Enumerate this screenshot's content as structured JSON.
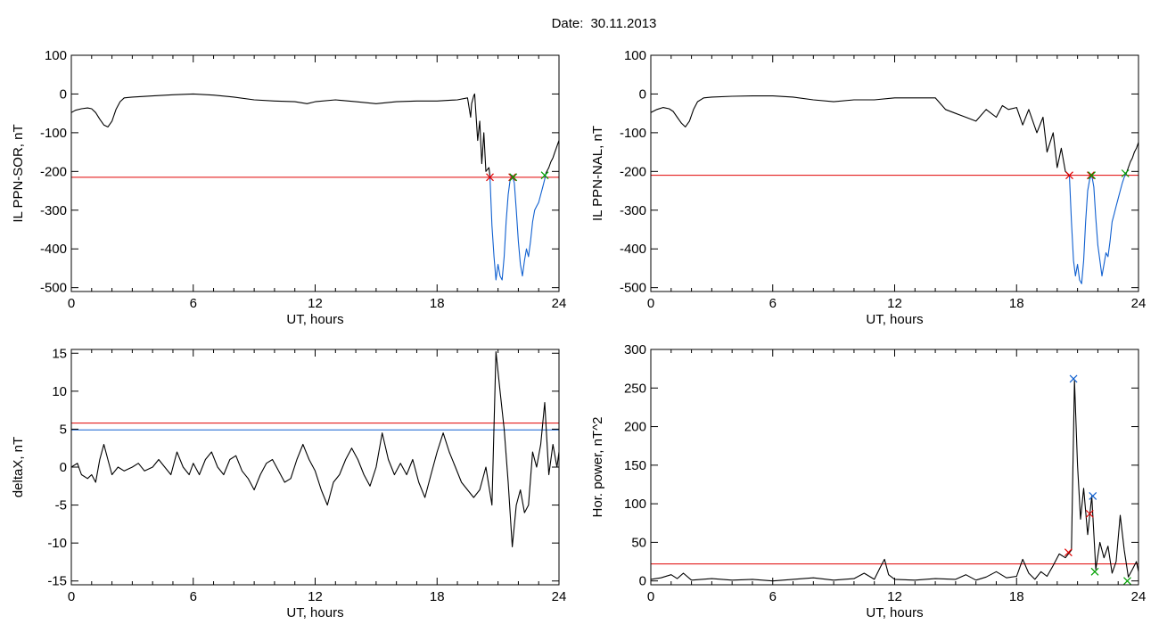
{
  "header": {
    "date_label": "Date:",
    "date_value": "30.11.2013"
  },
  "chart_data": [
    {
      "type": "line",
      "ylabel": "IL PPN-SOR, nT",
      "xlabel": "UT, hours",
      "xlim": [
        0,
        24
      ],
      "ylim": [
        -510,
        100
      ],
      "xticks": [
        0,
        6,
        12,
        18,
        24
      ],
      "yticks": [
        100,
        0,
        -100,
        -200,
        -300,
        -400,
        -500
      ],
      "threshold": {
        "value": -215,
        "color": "#e00000"
      },
      "series": [
        {
          "color": "#000000",
          "x": [
            0,
            0.2,
            0.5,
            0.8,
            1.0,
            1.2,
            1.4,
            1.6,
            1.8,
            2.0,
            2.2,
            2.4,
            2.6,
            3,
            4,
            5,
            6,
            7,
            8,
            9,
            10,
            11,
            11.6,
            12,
            13,
            14,
            15,
            16,
            17,
            18,
            19,
            19.5,
            19.65,
            19.7,
            19.8,
            19.85,
            20,
            20.1,
            20.2,
            20.3,
            20.4,
            20.55,
            20.6
          ],
          "y": [
            -48,
            -42,
            -38,
            -36,
            -38,
            -48,
            -65,
            -80,
            -85,
            -70,
            -40,
            -20,
            -10,
            -8,
            -5,
            -2,
            0,
            -3,
            -8,
            -15,
            -18,
            -20,
            -25,
            -20,
            -15,
            -20,
            -25,
            -20,
            -18,
            -18,
            -15,
            -10,
            -60,
            -25,
            -5,
            0,
            -120,
            -70,
            -180,
            -100,
            -200,
            -190,
            -210
          ]
        },
        {
          "color": "#1060d0",
          "x": [
            20.6,
            20.7,
            20.8,
            20.9,
            21.0,
            21.1,
            21.2,
            21.3,
            21.4,
            21.5,
            21.6,
            21.7,
            21.8,
            21.9,
            22.0,
            22.1,
            22.2,
            22.3,
            22.4,
            22.5,
            22.6,
            22.7,
            22.8,
            22.9,
            23.0,
            23.1,
            23.2,
            23.3,
            23.35
          ],
          "y": [
            -210,
            -340,
            -420,
            -480,
            -440,
            -470,
            -480,
            -420,
            -330,
            -260,
            -220,
            -210,
            -230,
            -300,
            -380,
            -440,
            -470,
            -430,
            -400,
            -420,
            -380,
            -330,
            -300,
            -290,
            -280,
            -260,
            -240,
            -220,
            -205
          ]
        },
        {
          "color": "#000000",
          "x": [
            23.35,
            23.5,
            23.6,
            23.7,
            23.8,
            23.9,
            24
          ],
          "y": [
            -205,
            -190,
            -175,
            -165,
            -150,
            -135,
            -120
          ]
        }
      ],
      "markers": [
        {
          "x": 20.6,
          "y": -215,
          "color": "#e00000"
        },
        {
          "x": 21.7,
          "y": -215,
          "color": "#e00000"
        },
        {
          "x": 21.75,
          "y": -215,
          "color": "#00a000"
        },
        {
          "x": 23.3,
          "y": -210,
          "color": "#00a000"
        }
      ]
    },
    {
      "type": "line",
      "ylabel": "IL PPN-NAL, nT",
      "xlabel": "UT, hours",
      "xlim": [
        0,
        24
      ],
      "ylim": [
        -510,
        100
      ],
      "xticks": [
        0,
        6,
        12,
        18,
        24
      ],
      "yticks": [
        100,
        0,
        -100,
        -200,
        -300,
        -400,
        -500
      ],
      "threshold": {
        "value": -210,
        "color": "#e00000"
      },
      "series": [
        {
          "color": "#000000",
          "x": [
            0,
            0.3,
            0.6,
            0.9,
            1.1,
            1.3,
            1.5,
            1.7,
            1.9,
            2.1,
            2.3,
            2.6,
            3,
            4,
            5,
            6,
            7,
            8,
            9,
            10,
            11,
            12,
            13,
            14,
            14.5,
            15,
            15.5,
            16,
            16.5,
            17,
            17.3,
            17.6,
            18,
            18.3,
            18.6,
            19,
            19.3,
            19.5,
            19.8,
            20,
            20.2,
            20.4,
            20.6
          ],
          "y": [
            -48,
            -40,
            -35,
            -38,
            -45,
            -60,
            -75,
            -85,
            -70,
            -40,
            -20,
            -10,
            -8,
            -6,
            -5,
            -5,
            -8,
            -15,
            -20,
            -15,
            -15,
            -10,
            -10,
            -10,
            -40,
            -50,
            -60,
            -70,
            -40,
            -60,
            -30,
            -40,
            -35,
            -80,
            -40,
            -100,
            -60,
            -150,
            -100,
            -190,
            -140,
            -200,
            -210
          ]
        },
        {
          "color": "#1060d0",
          "x": [
            20.6,
            20.7,
            20.8,
            20.9,
            21.0,
            21.1,
            21.2,
            21.3,
            21.4,
            21.5,
            21.6,
            21.7,
            21.8,
            21.9,
            22.0,
            22.1,
            22.2,
            22.3,
            22.4,
            22.5,
            22.6,
            22.7,
            22.8,
            22.9,
            23.0,
            23.1,
            23.2,
            23.3,
            23.4
          ],
          "y": [
            -210,
            -330,
            -430,
            -470,
            -440,
            -480,
            -490,
            -430,
            -330,
            -250,
            -220,
            -210,
            -240,
            -320,
            -390,
            -430,
            -470,
            -440,
            -410,
            -420,
            -380,
            -330,
            -310,
            -290,
            -270,
            -250,
            -230,
            -215,
            -205
          ]
        },
        {
          "color": "#000000",
          "x": [
            23.4,
            23.5,
            23.6,
            23.7,
            23.8,
            23.9,
            24
          ],
          "y": [
            -205,
            -190,
            -175,
            -165,
            -150,
            -140,
            -125
          ]
        }
      ],
      "markers": [
        {
          "x": 20.6,
          "y": -210,
          "color": "#e00000"
        },
        {
          "x": 21.65,
          "y": -210,
          "color": "#e00000"
        },
        {
          "x": 21.7,
          "y": -210,
          "color": "#00a000"
        },
        {
          "x": 23.35,
          "y": -205,
          "color": "#00a000"
        }
      ]
    },
    {
      "type": "line",
      "ylabel": "deltaX, nT",
      "xlabel": "UT, hours",
      "xlim": [
        0,
        24
      ],
      "ylim": [
        -15.5,
        15.5
      ],
      "xticks": [
        0,
        6,
        12,
        18,
        24
      ],
      "yticks": [
        15,
        10,
        5,
        0,
        -5,
        -10,
        -15
      ],
      "hlines": [
        {
          "value": 5.8,
          "color": "#e00000"
        },
        {
          "value": 4.9,
          "color": "#1060d0"
        }
      ],
      "series": [
        {
          "color": "#000000",
          "x": [
            0,
            0.3,
            0.5,
            0.8,
            1,
            1.2,
            1.4,
            1.6,
            1.8,
            2.0,
            2.3,
            2.6,
            3,
            3.3,
            3.6,
            4,
            4.3,
            4.6,
            4.9,
            5.2,
            5.5,
            5.8,
            6,
            6.3,
            6.6,
            6.9,
            7.2,
            7.5,
            7.8,
            8.1,
            8.4,
            8.7,
            9,
            9.3,
            9.6,
            9.9,
            10.2,
            10.5,
            10.8,
            11.1,
            11.4,
            11.7,
            12,
            12.3,
            12.6,
            12.9,
            13.2,
            13.5,
            13.8,
            14.1,
            14.4,
            14.7,
            15,
            15.3,
            15.6,
            15.9,
            16.2,
            16.5,
            16.8,
            17.1,
            17.4,
            17.7,
            18,
            18.3,
            18.6,
            18.9,
            19.2,
            19.5,
            19.8,
            20.1,
            20.4,
            20.7,
            20.9,
            21.1,
            21.3,
            21.5,
            21.7,
            21.9,
            22.1,
            22.3,
            22.5,
            22.7,
            22.9,
            23.1,
            23.3,
            23.5,
            23.7,
            23.9,
            24
          ],
          "y": [
            0,
            0.5,
            -1,
            -1.5,
            -1,
            -2,
            1,
            3,
            1,
            -1,
            0,
            -0.5,
            0,
            0.5,
            -0.5,
            0,
            1,
            0,
            -1,
            2,
            0,
            -1,
            0.5,
            -1,
            1,
            2,
            0,
            -1,
            1,
            1.5,
            -0.5,
            -1.5,
            -3,
            -1,
            0.5,
            1,
            -0.5,
            -2,
            -1.5,
            1,
            3,
            1,
            -0.5,
            -3,
            -5,
            -2,
            -1,
            1,
            2.5,
            1,
            -1,
            -2.5,
            0,
            4.5,
            1,
            -1,
            0.5,
            -1,
            1,
            -2,
            -4,
            -1,
            2,
            4.5,
            2,
            0,
            -2,
            -3,
            -4,
            -3,
            0,
            -5,
            15.2,
            10,
            5,
            -2,
            -10.5,
            -5,
            -3,
            -6,
            -5,
            2,
            0,
            3,
            8.5,
            -1,
            3,
            0,
            2
          ]
        }
      ]
    },
    {
      "type": "line",
      "ylabel": "Hor. power, nT^2",
      "xlabel": "UT, hours",
      "xlim": [
        0,
        24
      ],
      "ylim": [
        -5,
        300
      ],
      "xticks": [
        0,
        6,
        12,
        18,
        24
      ],
      "yticks": [
        300,
        250,
        200,
        150,
        100,
        50,
        0
      ],
      "threshold": {
        "value": 22,
        "color": "#e00000"
      },
      "series": [
        {
          "color": "#000000",
          "x": [
            0,
            0.5,
            1,
            1.3,
            1.6,
            2,
            3,
            4,
            5,
            6,
            7,
            8,
            9,
            10,
            10.5,
            11,
            11.3,
            11.5,
            11.7,
            12,
            13,
            14,
            15,
            15.5,
            16,
            16.5,
            17,
            17.5,
            18,
            18.3,
            18.6,
            18.9,
            19.2,
            19.5,
            19.8,
            20.1,
            20.4,
            20.7,
            20.85,
            21.0,
            21.15,
            21.3,
            21.5,
            21.7,
            21.9,
            22.1,
            22.3,
            22.5,
            22.7,
            22.9,
            23.1,
            23.3,
            23.5,
            23.7,
            23.9,
            24
          ],
          "y": [
            2,
            4,
            8,
            3,
            10,
            1,
            3,
            1,
            2,
            0,
            2,
            4,
            1,
            3,
            10,
            2,
            18,
            28,
            8,
            2,
            1,
            3,
            2,
            8,
            1,
            5,
            12,
            4,
            6,
            28,
            10,
            2,
            12,
            6,
            20,
            35,
            30,
            40,
            260,
            150,
            80,
            120,
            60,
            110,
            15,
            50,
            30,
            45,
            10,
            25,
            85,
            40,
            5,
            15,
            25,
            12
          ]
        }
      ],
      "markers": [
        {
          "x": 20.8,
          "y": 262,
          "color": "#1060d0"
        },
        {
          "x": 21.75,
          "y": 110,
          "color": "#1060d0"
        },
        {
          "x": 20.55,
          "y": 37,
          "color": "#e00000"
        },
        {
          "x": 21.6,
          "y": 87,
          "color": "#e00000"
        },
        {
          "x": 21.85,
          "y": 12,
          "color": "#00a000"
        },
        {
          "x": 23.45,
          "y": 0,
          "color": "#00a000"
        }
      ]
    }
  ]
}
